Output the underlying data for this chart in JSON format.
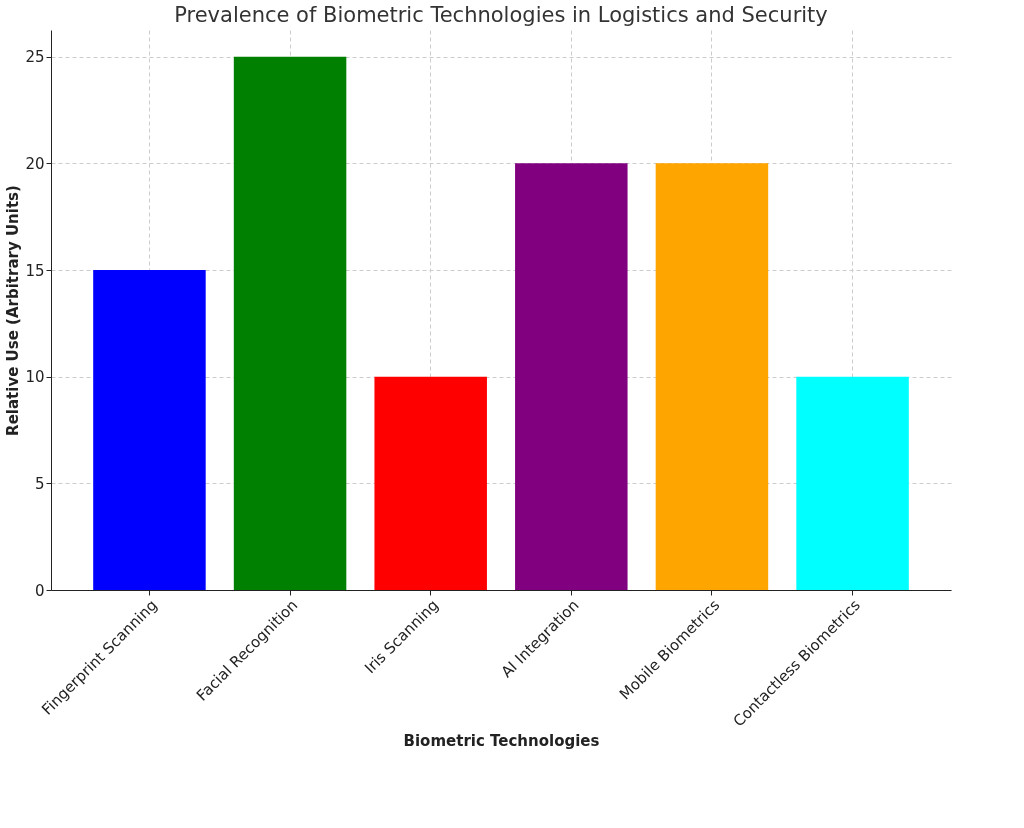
{
  "chart_data": {
    "type": "bar",
    "title": "Prevalence of Biometric Technologies in Logistics and Security",
    "xlabel": "Biometric Technologies",
    "ylabel": "Relative Use (Arbitrary Units)",
    "categories": [
      "Fingerprint Scanning",
      "Facial Recognition",
      "Iris Scanning",
      "AI Integration",
      "Mobile Biometrics",
      "Contactless Biometrics"
    ],
    "values": [
      15,
      25,
      10,
      20,
      20,
      10
    ],
    "colors": [
      "#0000ff",
      "#008000",
      "#ff0000",
      "#800080",
      "#ffa500",
      "#00ffff"
    ],
    "ylim": [
      0,
      26.25
    ],
    "yticks": [
      0,
      5,
      10,
      15,
      20,
      25
    ],
    "grid": true
  }
}
